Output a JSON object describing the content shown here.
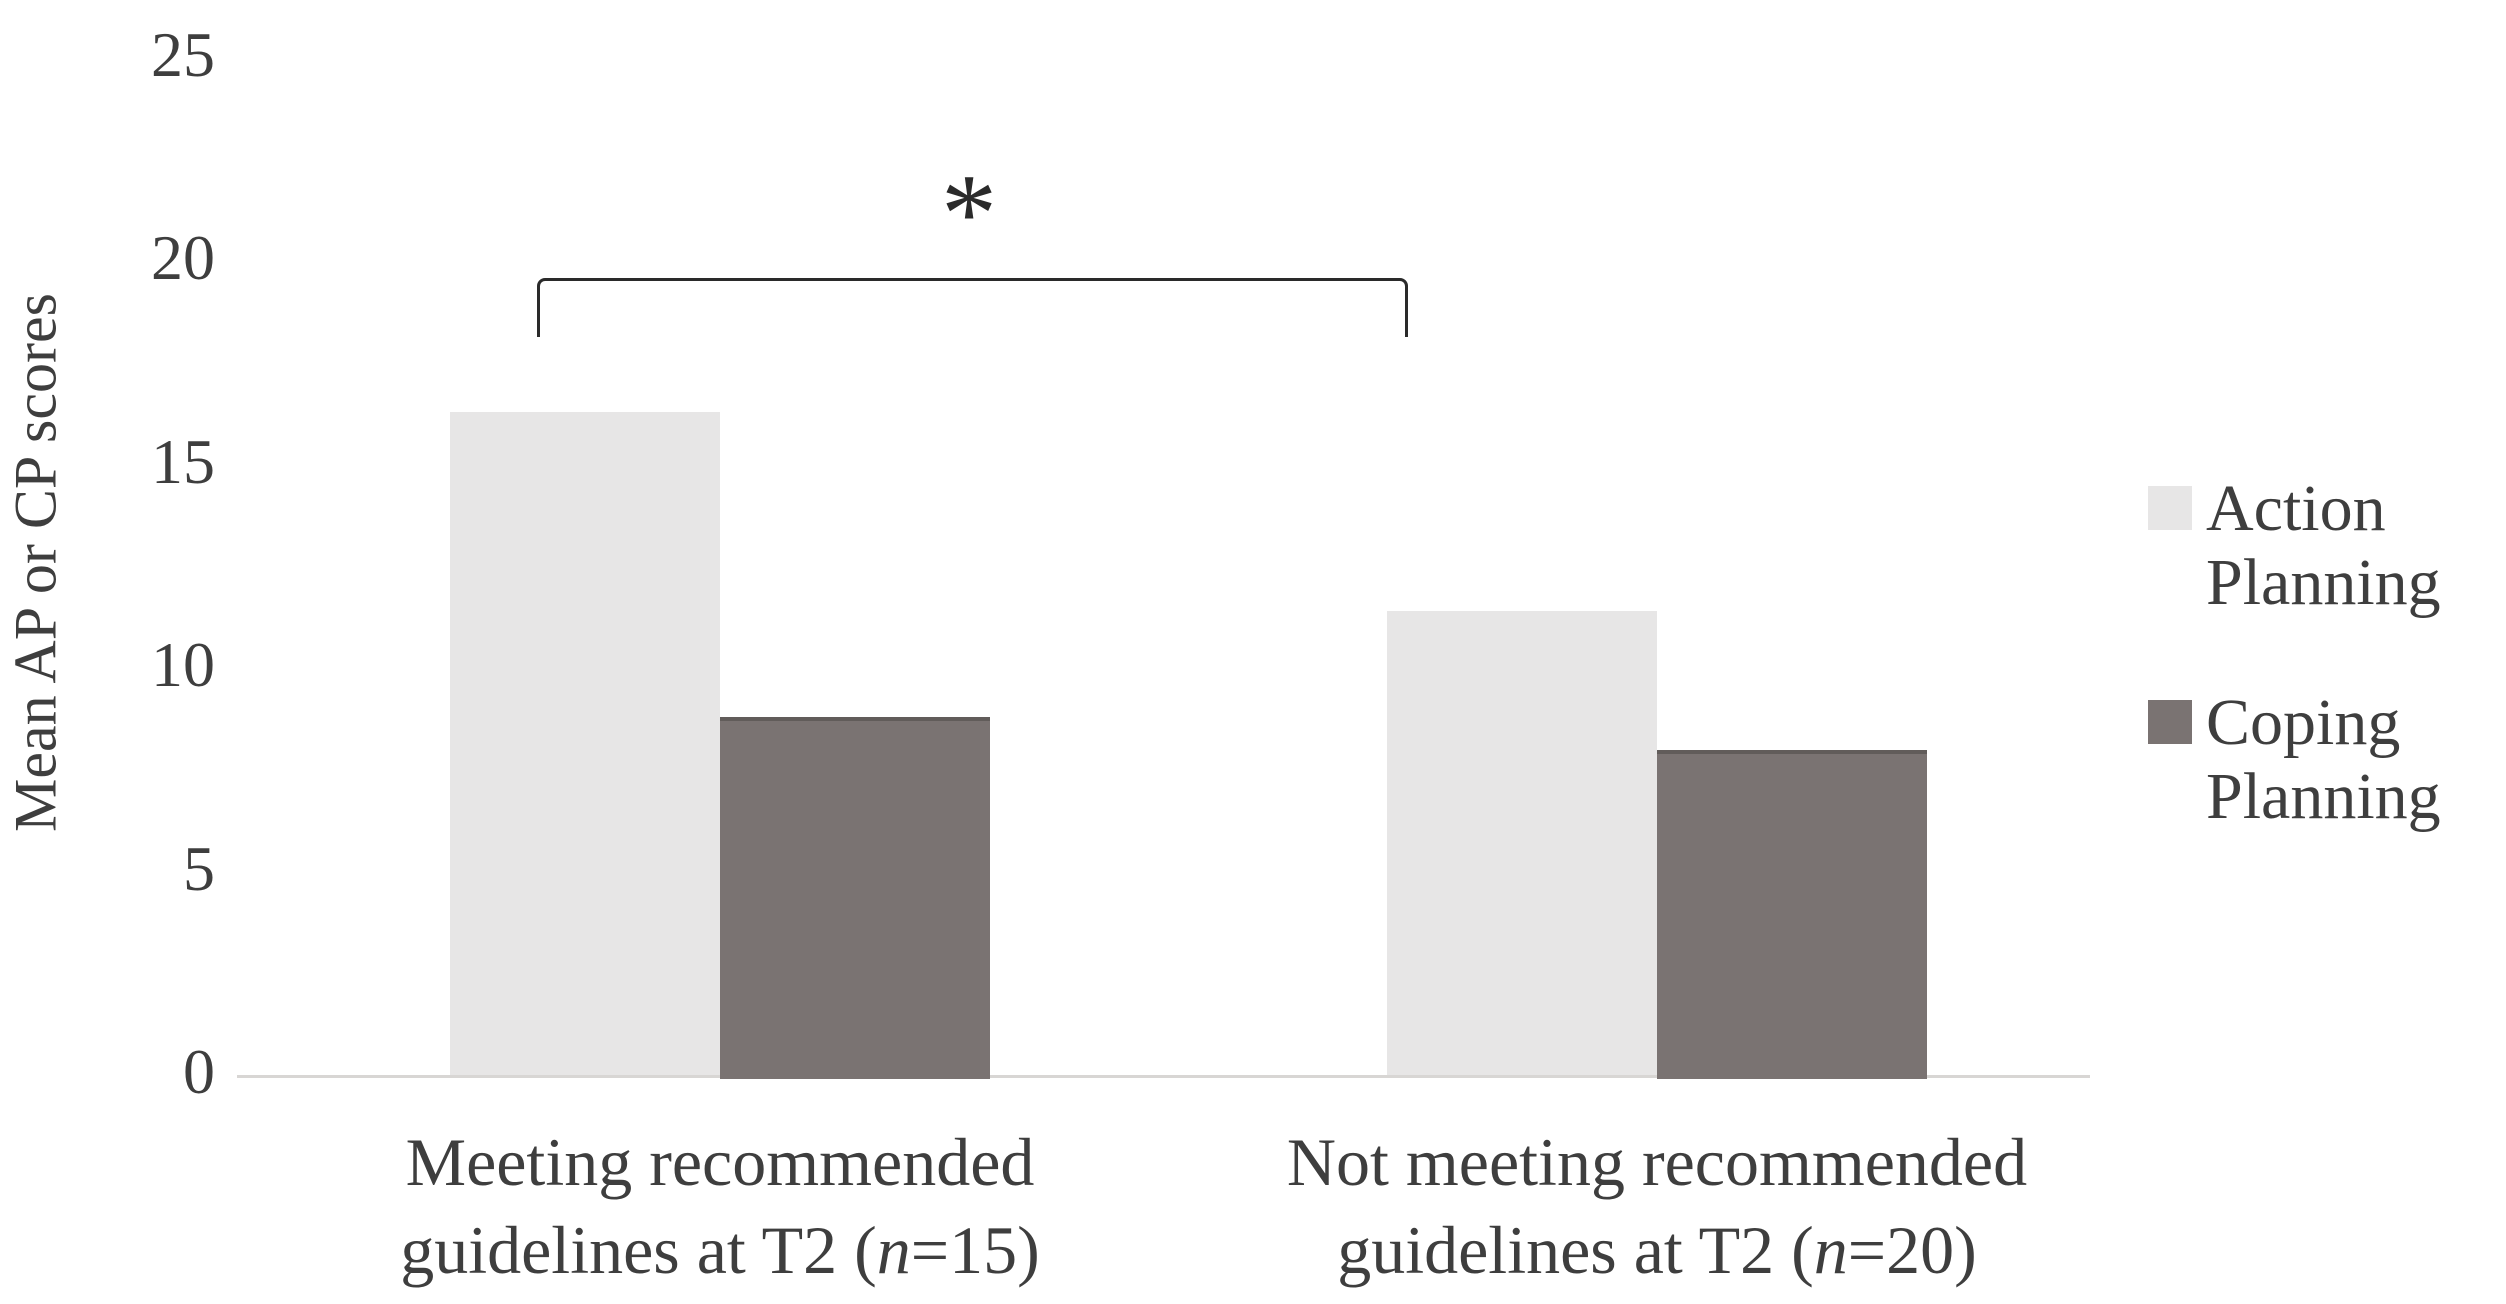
{
  "figure": {
    "colors": {
      "background": "#ffffff",
      "text": "#3e3e3e",
      "axis_line": "#d8d6d4",
      "annotation": "#2a2a2a"
    }
  },
  "chart_data": {
    "type": "bar",
    "title": "",
    "xlabel": "",
    "ylabel": "Mean AP or CP scores",
    "ylim": [
      0,
      25
    ],
    "yticks": [
      0,
      5,
      10,
      15,
      20,
      25
    ],
    "grid": false,
    "legend_position": "right",
    "categories": [
      "Meeting recommended guidelines at T2 (n=15)",
      "Not meeting recommended guidelines at T2 (n=20)"
    ],
    "categories_rich": [
      {
        "line1": "Meeting recommended",
        "line2_pre": "guidelines at T2 (",
        "line2_italic": "n",
        "line2_post": "=15)"
      },
      {
        "line1": "Not meeting recommended",
        "line2_pre": "guidelines at T2 (",
        "line2_italic": "n",
        "line2_post": "=20)"
      }
    ],
    "series": [
      {
        "name": "Action Planning",
        "legend_lines": [
          "Action",
          "Planning"
        ],
        "color": "#e7e6e6",
        "edge_top": "",
        "values": [
          16.3,
          11.4
        ]
      },
      {
        "name": "Coping Planning",
        "legend_lines": [
          "Coping",
          "Planning"
        ],
        "color": "#7a7372",
        "edge_top": "#615c5a",
        "values": [
          8.8,
          8.0
        ]
      }
    ],
    "annotation": {
      "symbol": "*",
      "connects": [
        "Action Planning / Meeting recommended guidelines at T2 (n=15)",
        "Action Planning / Not meeting recommended guidelines at T2 (n=20)"
      ]
    }
  }
}
